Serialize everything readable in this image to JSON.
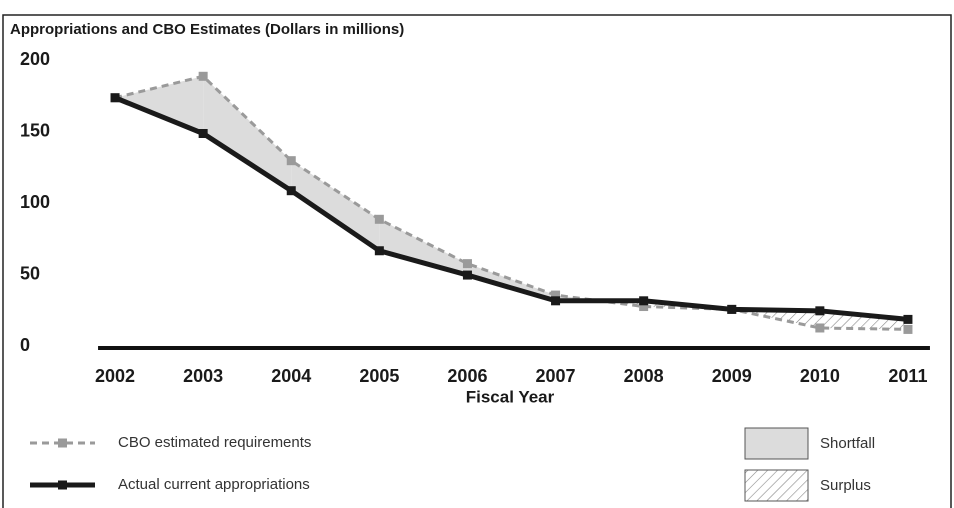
{
  "chart_data": {
    "type": "line",
    "subtitle": "Appropriations and CBO Estimates (Dollars in millions)",
    "x_label": "Fiscal Year",
    "categories": [
      "2002",
      "2003",
      "2004",
      "2005",
      "2006",
      "2007",
      "2008",
      "2009",
      "2010",
      "2011"
    ],
    "series": [
      {
        "name": "CBO estimated requirements",
        "color": "#9a9a9a",
        "dashed": true,
        "values": [
          175,
          190,
          131,
          90,
          59,
          37,
          29,
          27,
          14,
          13
        ]
      },
      {
        "name": "Actual current appropriations",
        "color": "#1a1a1a",
        "dashed": false,
        "values": [
          175,
          150,
          110,
          68,
          51,
          33,
          33,
          27,
          26,
          20
        ]
      }
    ],
    "areas": [
      {
        "name": "Shortfall",
        "color": "#dcdcdc"
      },
      {
        "name": "Surplus",
        "color": "#888888",
        "pattern": "hatch"
      }
    ],
    "ylim": [
      0,
      200
    ],
    "yticks": [
      0,
      50,
      100,
      150,
      200
    ]
  }
}
